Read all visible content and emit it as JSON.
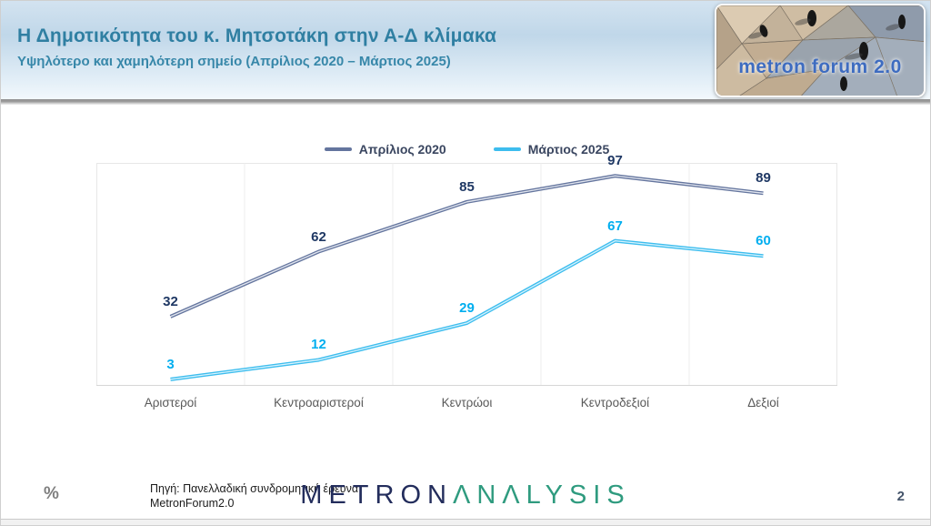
{
  "header": {
    "title": "Η Δημοτικότητα του κ. Μητσοτάκη στην Α-Δ κλίμακα",
    "subtitle": "Υψηλότερο και χαμηλότερη σημείο (Απρίλιος 2020 – Μάρτιος 2025)",
    "title_color": "#2f7fa2",
    "logo_text": "metron forum 2.0"
  },
  "chart_data": {
    "type": "line",
    "title": "",
    "categories": [
      "Αριστεροί",
      "Κεντροαριστεροί",
      "Κεντρώοι",
      "Κεντροδεξιοί",
      "Δεξιοί"
    ],
    "series": [
      {
        "name": "Απρίλιος 2020",
        "values": [
          32,
          62,
          85,
          97,
          89
        ],
        "color": "#64759e",
        "label_color": "#1f3864"
      },
      {
        "name": "Μάρτιος 2025",
        "values": [
          3,
          12,
          29,
          67,
          60
        ],
        "color": "#3dbdee",
        "label_color": "#00aeef"
      }
    ],
    "ylim": [
      0,
      100
    ],
    "unit": "%",
    "data_labels": true,
    "grid": "vertical category boundaries only",
    "legend_position": "top-center",
    "xlabel": "",
    "ylabel": ""
  },
  "footer": {
    "unit_note": "%",
    "source_line1": "Πηγή: Πανελλαδική συνδρομητική έρευνα",
    "source_line2": "MetronForum2.0",
    "brand_part1": "METRON",
    "brand_part2": "ΛNΛLYSIS",
    "page_number": "2"
  }
}
